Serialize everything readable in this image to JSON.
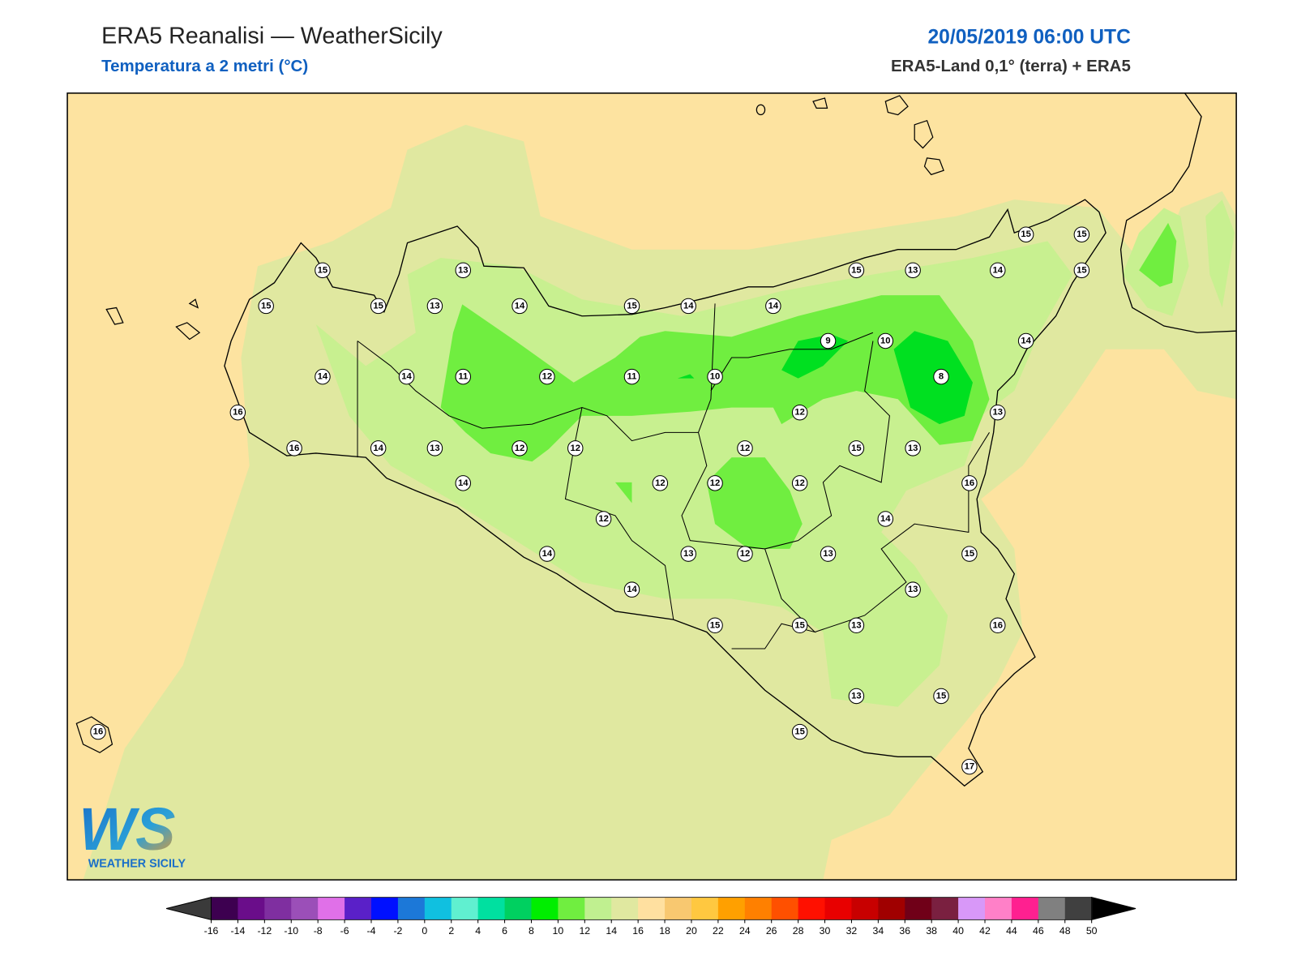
{
  "header": {
    "title": "ERA5 Reanalisi — WeatherSicily",
    "subtitle": "Temperatura a 2 metri (°C)",
    "date": "20/05/2019 06:00 UTC",
    "source": "ERA5-Land 0,1° (terra) + ERA5"
  },
  "stations": [
    15,
    13,
    15,
    15,
    13,
    14,
    15,
    14,
    14,
    15,
    13,
    14,
    15,
    15,
    15,
    9,
    10,
    14,
    14,
    14,
    11,
    12,
    11,
    10,
    8,
    16,
    12,
    13,
    16,
    14,
    13,
    12,
    12,
    12,
    15,
    13,
    14,
    12,
    12,
    12,
    16,
    12,
    14,
    14,
    13,
    12,
    13,
    15,
    14,
    13,
    15,
    15,
    13,
    16,
    13,
    15,
    15,
    16,
    17
  ],
  "colorbar": {
    "ticks": [
      -16,
      -14,
      -12,
      -10,
      -8,
      -6,
      -4,
      -2,
      0,
      2,
      4,
      6,
      8,
      10,
      12,
      14,
      16,
      18,
      20,
      22,
      24,
      26,
      28,
      30,
      32,
      34,
      36,
      38,
      40,
      42,
      44,
      46,
      48,
      50
    ],
    "colors": [
      "#3d0050",
      "#6a0d8a",
      "#7f2fa0",
      "#9b4fb8",
      "#e070e8",
      "#5a20c8",
      "#0010ff",
      "#1c78d8",
      "#10c0e0",
      "#60f0d0",
      "#00e0a0",
      "#00d060",
      "#00ee00",
      "#70ee40",
      "#c0f090",
      "#e0e8a0",
      "#ffe0a0",
      "#f8c870",
      "#ffc840",
      "#ffa000",
      "#ff8000",
      "#ff5000",
      "#ff1000",
      "#e80000",
      "#c80000",
      "#a00000",
      "#700018",
      "#7a2040",
      "#d898f8",
      "#ff80c8",
      "#ff2090",
      "#808080",
      "#404040"
    ]
  },
  "logo": {
    "letters": "WS",
    "name": "WEATHER SICILY"
  }
}
